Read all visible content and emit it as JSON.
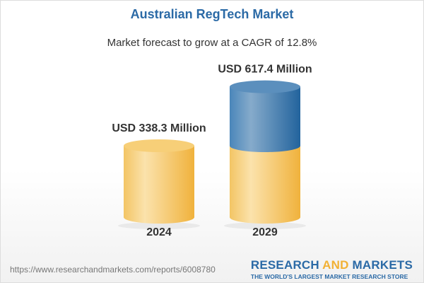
{
  "title": "Australian RegTech Market",
  "subtitle": "Market forecast to grow at a CAGR of 12.8%",
  "chart_data": {
    "type": "bar",
    "style": "3d-cylinder",
    "categories": [
      "2024",
      "2029"
    ],
    "values": [
      338.3,
      617.4
    ],
    "data_labels": [
      "USD 338.3 Million",
      "USD 617.4 Million"
    ],
    "unit": "USD Million",
    "title": "Australian RegTech Market",
    "subtitle": "Market forecast to grow at a CAGR of 12.8%",
    "colors": {
      "base": "#f2c05a",
      "growth": "#3f7fb3"
    },
    "grid": false
  },
  "footer": {
    "url": "https://www.researchandmarkets.com/reports/6008780",
    "logo_part1": "RESEARCH ",
    "logo_part2": "AND",
    "logo_part3": " MARKETS",
    "tagline": "THE WORLD'S LARGEST MARKET RESEARCH STORE"
  }
}
